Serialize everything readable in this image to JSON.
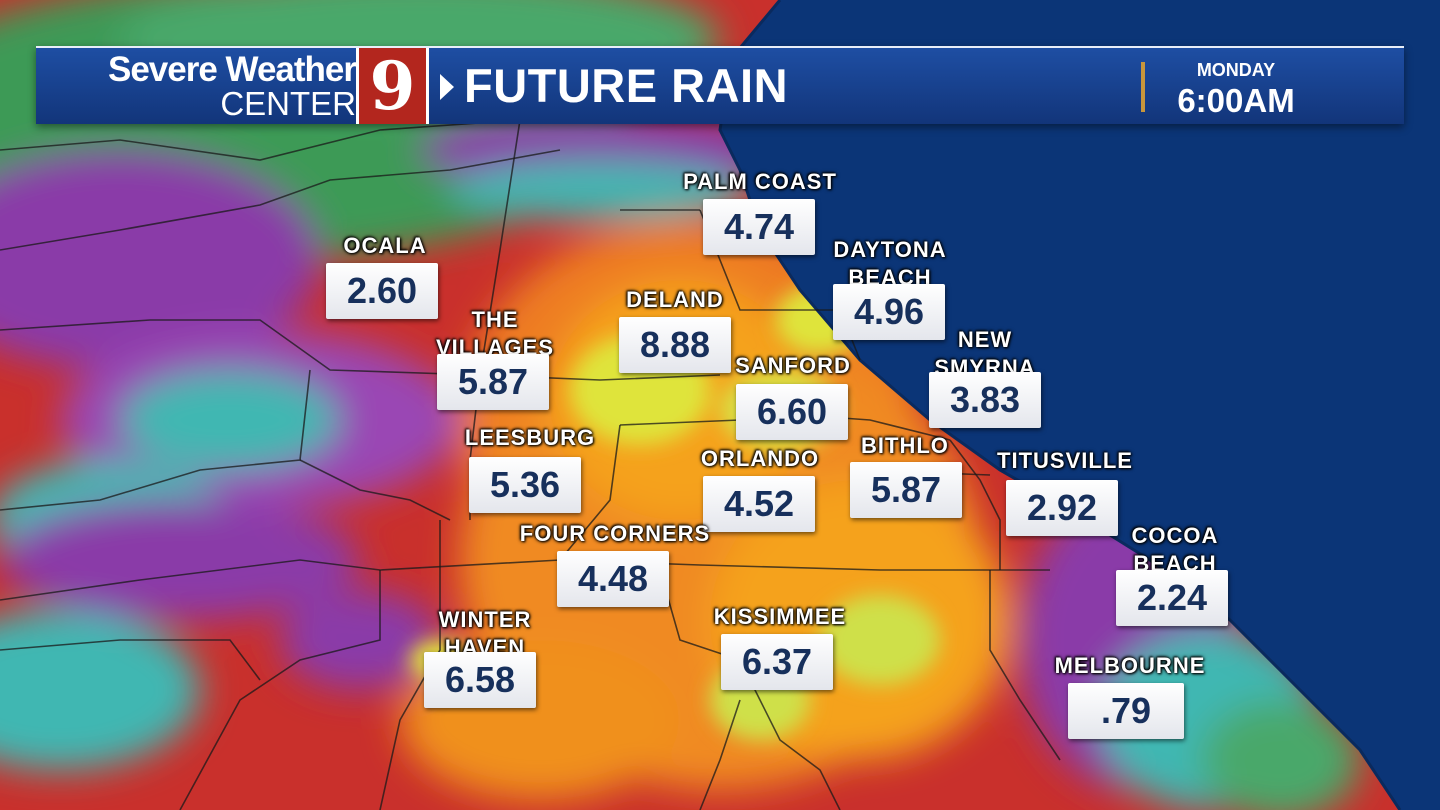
{
  "header": {
    "brand_line1": "Severe Weather",
    "brand_line2": "CENTER",
    "channel_number": "9",
    "title": "FUTURE RAIN",
    "day": "MONDAY",
    "time": "6:00AM"
  },
  "colors": {
    "ocean": "#0b3577",
    "banner": "#1a449a",
    "logo_red": "#b3261e",
    "value_text": "#17305c",
    "rain_heavy": "#d8262a",
    "rain_very_heavy": "#f5a21a",
    "rain_extreme": "#dfe43a",
    "rain_moderate": "#8a3aa8",
    "rain_light": "#3fb7b2"
  },
  "cities": [
    {
      "name": "PALM COAST",
      "value": "4.74"
    },
    {
      "name": "OCALA",
      "value": "2.60"
    },
    {
      "name": "DAYTONA BEACH",
      "value": "4.96"
    },
    {
      "name": "DELAND",
      "value": "8.88"
    },
    {
      "name": "THE VILLAGES",
      "value": "5.87"
    },
    {
      "name": "NEW SMYRNA",
      "value": "3.83"
    },
    {
      "name": "SANFORD",
      "value": "6.60"
    },
    {
      "name": "LEESBURG",
      "value": "5.36"
    },
    {
      "name": "BITHLO",
      "value": "5.87"
    },
    {
      "name": "ORLANDO",
      "value": "4.52"
    },
    {
      "name": "TITUSVILLE",
      "value": "2.92"
    },
    {
      "name": "FOUR CORNERS",
      "value": "4.48"
    },
    {
      "name": "COCOA BEACH",
      "value": "2.24"
    },
    {
      "name": "KISSIMMEE",
      "value": "6.37"
    },
    {
      "name": "WINTER HAVEN",
      "value": "6.58"
    },
    {
      "name": "MELBOURNE",
      "value": ".79"
    }
  ]
}
